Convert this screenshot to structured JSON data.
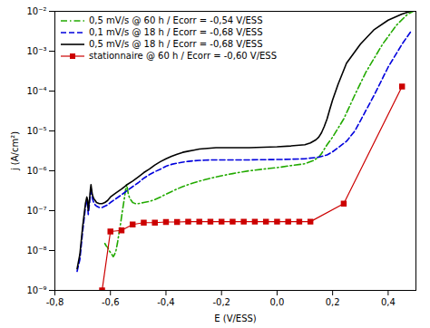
{
  "chart_data": {
    "type": "line",
    "title": "",
    "xlabel": "E (V/ESS)",
    "ylabel": "j (A/cm²)",
    "log": "y",
    "grid": false,
    "legend": "upper left",
    "xlim": [
      -0.8,
      0.5
    ],
    "ylim": [
      1e-09,
      0.01
    ],
    "xticks": [
      {
        "value": -0.8,
        "label": "-0,8"
      },
      {
        "value": -0.6,
        "label": "-0,6"
      },
      {
        "value": -0.4,
        "label": "-0,4"
      },
      {
        "value": -0.2,
        "label": "-0,2"
      },
      {
        "value": 0.0,
        "label": "0,0"
      },
      {
        "value": 0.2,
        "label": "0,2"
      },
      {
        "value": 0.4,
        "label": "0,4"
      }
    ],
    "yticks": [
      {
        "value": 1e-09,
        "label": "10⁻⁹"
      },
      {
        "value": 1e-08,
        "label": "10⁻⁸"
      },
      {
        "value": 1e-07,
        "label": "10⁻⁷"
      },
      {
        "value": 1e-06,
        "label": "10⁻⁶"
      },
      {
        "value": 1e-05,
        "label": "10⁻⁵"
      },
      {
        "value": 0.0001,
        "label": "10⁻⁴"
      },
      {
        "value": 0.001,
        "label": "10⁻³"
      },
      {
        "value": 0.01,
        "label": "10⁻²"
      }
    ],
    "series": [
      {
        "name": "0,5 mV/s @ 60 h / Ecorr = -0,54 V/ESS",
        "color": "#22aa00",
        "line_style": "dash-dot",
        "marker": "none",
        "x": [
          -0.62,
          -0.615,
          -0.61,
          -0.605,
          -0.6,
          -0.595,
          -0.59,
          -0.585,
          -0.58,
          -0.575,
          -0.57,
          -0.565,
          -0.56,
          -0.555,
          -0.55,
          -0.545,
          -0.542,
          -0.54,
          -0.538,
          -0.535,
          -0.53,
          -0.525,
          -0.52,
          -0.515,
          -0.51,
          -0.5,
          -0.48,
          -0.46,
          -0.44,
          -0.42,
          -0.4,
          -0.38,
          -0.36,
          -0.34,
          -0.32,
          -0.3,
          -0.28,
          -0.26,
          -0.24,
          -0.22,
          -0.2,
          -0.18,
          -0.16,
          -0.14,
          -0.12,
          -0.1,
          -0.05,
          0.0,
          0.05,
          0.1,
          0.13,
          0.15,
          0.16,
          0.17,
          0.18,
          0.2,
          0.24,
          0.28,
          0.32,
          0.38,
          0.43,
          0.47,
          0.49
        ],
        "values": [
          1.5e-08,
          1.3e-08,
          1.2e-08,
          1e-08,
          9e-09,
          8e-09,
          7e-09,
          8e-09,
          1e-08,
          1.5e-08,
          2.5e-08,
          4e-08,
          7e-08,
          1.2e-07,
          2e-07,
          3.5e-07,
          4.5e-07,
          4e-07,
          3.2e-07,
          2.5e-07,
          2e-07,
          1.8e-07,
          1.6e-07,
          1.55e-07,
          1.5e-07,
          1.5e-07,
          1.6e-07,
          1.7e-07,
          1.9e-07,
          2.2e-07,
          2.6e-07,
          3e-07,
          3.5e-07,
          4e-07,
          4.5e-07,
          5e-07,
          5.5e-07,
          6e-07,
          6.5e-07,
          7e-07,
          7.5e-07,
          8e-07,
          8.5e-07,
          9e-07,
          9.5e-07,
          1e-06,
          1.1e-06,
          1.2e-06,
          1.35e-06,
          1.5e-06,
          1.8e-06,
          2.2e-06,
          2.7e-06,
          3.5e-06,
          4.5e-06,
          7e-06,
          2e-05,
          8e-05,
          0.0003,
          0.0015,
          0.0045,
          0.0085,
          0.01
        ]
      },
      {
        "name": "0,1 mV/s @ 18 h / Ecorr = -0,68 V/ESS",
        "color": "#0000dd",
        "line_style": "dashed",
        "marker": "none",
        "x": [
          -0.72,
          -0.71,
          -0.7,
          -0.69,
          -0.685,
          -0.682,
          -0.68,
          -0.678,
          -0.675,
          -0.672,
          -0.67,
          -0.668,
          -0.665,
          -0.66,
          -0.655,
          -0.65,
          -0.64,
          -0.63,
          -0.62,
          -0.61,
          -0.6,
          -0.58,
          -0.56,
          -0.54,
          -0.52,
          -0.5,
          -0.48,
          -0.46,
          -0.44,
          -0.42,
          -0.4,
          -0.38,
          -0.36,
          -0.34,
          -0.32,
          -0.3,
          -0.28,
          -0.26,
          -0.24,
          -0.22,
          -0.2,
          -0.18,
          -0.16,
          -0.14,
          -0.12,
          -0.1,
          -0.05,
          0.0,
          0.05,
          0.1,
          0.15,
          0.18,
          0.2,
          0.22,
          0.25,
          0.28,
          0.3,
          0.35,
          0.4,
          0.45,
          0.48
        ],
        "values": [
          3e-09,
          6e-09,
          3e-08,
          1.2e-07,
          1.8e-07,
          1.5e-07,
          8e-08,
          1e-07,
          1.6e-07,
          2.8e-07,
          3.8e-07,
          3e-07,
          2e-07,
          1.6e-07,
          1.4e-07,
          1.3e-07,
          1.2e-07,
          1.2e-07,
          1.3e-07,
          1.4e-07,
          1.6e-07,
          2e-07,
          2.5e-07,
          3.2e-07,
          4e-07,
          5e-07,
          6.5e-07,
          8e-07,
          9.5e-07,
          1.1e-06,
          1.3e-06,
          1.45e-06,
          1.55e-06,
          1.65e-06,
          1.72e-06,
          1.78e-06,
          1.82e-06,
          1.85e-06,
          1.87e-06,
          1.88e-06,
          1.88e-06,
          1.88e-06,
          1.88e-06,
          1.88e-06,
          1.88e-06,
          1.88e-06,
          1.9e-06,
          1.92e-06,
          1.95e-06,
          2e-06,
          2.2e-06,
          2.5e-06,
          3e-06,
          3.8e-06,
          5.5e-06,
          1e-05,
          1.8e-05,
          8e-05,
          0.0004,
          0.0015,
          0.003
        ]
      },
      {
        "name": "0,5 mV/s @ 18 h / Ecorr = -0,68 V/ESS",
        "color": "#000000",
        "line_style": "solid",
        "marker": "none",
        "x": [
          -0.72,
          -0.71,
          -0.7,
          -0.69,
          -0.685,
          -0.682,
          -0.68,
          -0.678,
          -0.675,
          -0.672,
          -0.67,
          -0.668,
          -0.665,
          -0.66,
          -0.655,
          -0.65,
          -0.64,
          -0.63,
          -0.62,
          -0.61,
          -0.6,
          -0.58,
          -0.56,
          -0.54,
          -0.52,
          -0.5,
          -0.48,
          -0.46,
          -0.44,
          -0.42,
          -0.4,
          -0.38,
          -0.36,
          -0.34,
          -0.32,
          -0.3,
          -0.28,
          -0.26,
          -0.24,
          -0.22,
          -0.2,
          -0.18,
          -0.16,
          -0.14,
          -0.12,
          -0.1,
          -0.05,
          0.0,
          0.05,
          0.1,
          0.12,
          0.14,
          0.15,
          0.16,
          0.17,
          0.18,
          0.19,
          0.2,
          0.22,
          0.25,
          0.3,
          0.35,
          0.4,
          0.45,
          0.48
        ],
        "values": [
          3.5e-09,
          8e-09,
          4e-08,
          1.5e-07,
          2.2e-07,
          1.8e-07,
          1e-07,
          1.3e-07,
          2e-07,
          3.5e-07,
          4.5e-07,
          3.5e-07,
          2.5e-07,
          2e-07,
          1.8e-07,
          1.6e-07,
          1.5e-07,
          1.5e-07,
          1.6e-07,
          1.8e-07,
          2.2e-07,
          2.8e-07,
          3.5e-07,
          4.5e-07,
          5.5e-07,
          7e-07,
          9e-07,
          1.1e-06,
          1.4e-06,
          1.7e-06,
          2e-06,
          2.3e-06,
          2.6e-06,
          2.9e-06,
          3.1e-06,
          3.3e-06,
          3.5e-06,
          3.6e-06,
          3.7e-06,
          3.8e-06,
          3.8e-06,
          3.8e-06,
          3.8e-06,
          3.8e-06,
          3.8e-06,
          3.8e-06,
          3.9e-06,
          4e-06,
          4.2e-06,
          4.5e-06,
          5e-06,
          6e-06,
          7e-06,
          9e-06,
          1.3e-05,
          2e-05,
          3.5e-05,
          6e-05,
          0.00015,
          0.0005,
          0.0015,
          0.0035,
          0.006,
          0.0085,
          0.01
        ]
      },
      {
        "name": "stationnaire @ 60 h / Ecorr = -0,60 V/ESS",
        "color": "#cc0000",
        "line_style": "solid",
        "marker": "square",
        "x": [
          -0.63,
          -0.6,
          -0.56,
          -0.52,
          -0.48,
          -0.44,
          -0.4,
          -0.36,
          -0.32,
          -0.28,
          -0.24,
          -0.2,
          -0.16,
          -0.12,
          -0.08,
          -0.04,
          0.0,
          0.04,
          0.08,
          0.12,
          0.24,
          0.45
        ],
        "values": [
          1e-09,
          3e-08,
          3.2e-08,
          4.5e-08,
          5e-08,
          5e-08,
          5.2e-08,
          5.2e-08,
          5.3e-08,
          5.3e-08,
          5.3e-08,
          5.3e-08,
          5.3e-08,
          5.3e-08,
          5.3e-08,
          5.3e-08,
          5.3e-08,
          5.3e-08,
          5.3e-08,
          5.3e-08,
          1.5e-07,
          0.00013
        ]
      }
    ]
  }
}
